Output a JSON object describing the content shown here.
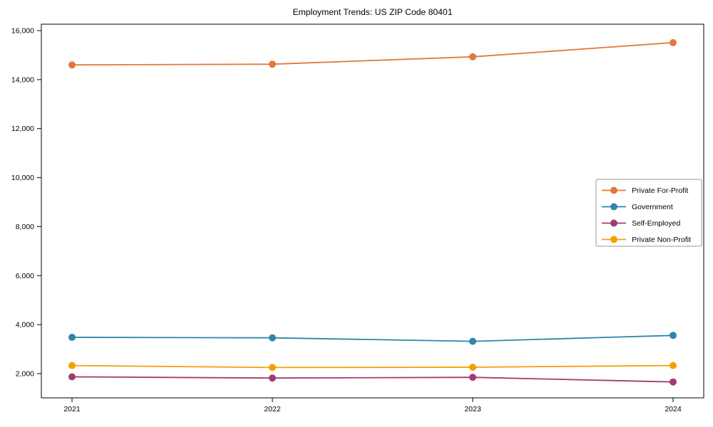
{
  "page": {
    "background_color": "#ffffff",
    "text_color": "#000000",
    "frame_color": "#000000",
    "legend_border_color": "#999999"
  },
  "chart_data": {
    "type": "line",
    "title": "Employment Trends: US ZIP Code 80401",
    "xlabel": "",
    "ylabel": "",
    "grid": false,
    "legend_position": "middle-right",
    "x": [
      2021,
      2022,
      2023,
      2024
    ],
    "x_tick_labels": [
      "2021",
      "2022",
      "2023",
      "2024"
    ],
    "y_tick_values": [
      2000,
      4000,
      6000,
      8000,
      10000,
      12000,
      14000,
      16000
    ],
    "y_tick_labels": [
      "2,000",
      "4,000",
      "6,000",
      "8,000",
      "10,000",
      "12,000",
      "14,000",
      "16,000"
    ],
    "ylim": [
      1010,
      16260
    ],
    "series": [
      {
        "name": "Private For-Profit",
        "color": "#E0793C",
        "values": [
          14600,
          14630,
          14930,
          15510
        ]
      },
      {
        "name": "Government",
        "color": "#2E86AB",
        "values": [
          3480,
          3460,
          3320,
          3560
        ]
      },
      {
        "name": "Self-Employed",
        "color": "#A23B72",
        "values": [
          1870,
          1820,
          1850,
          1660
        ]
      },
      {
        "name": "Private Non-Profit",
        "color": "#F5A000",
        "values": [
          2330,
          2250,
          2260,
          2330
        ]
      }
    ]
  }
}
